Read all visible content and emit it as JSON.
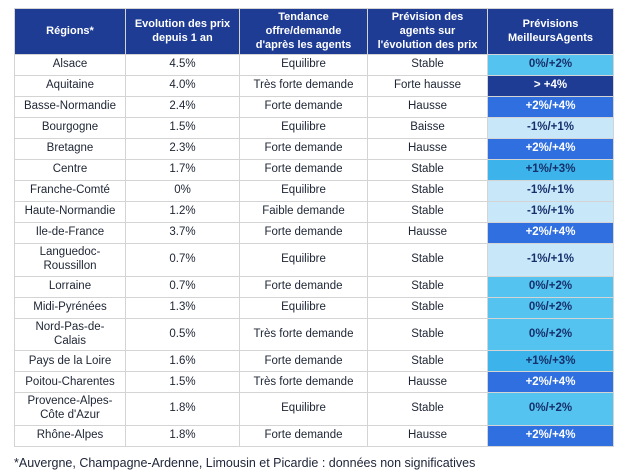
{
  "colors": {
    "header_bg": "#1e3c94",
    "header_text": "#ffffff",
    "body_text": "#1d2433",
    "grid_line": "#d4d4d4",
    "scale_l1": "#c8e8fa",
    "scale_l2": "#55c3f0",
    "scale_l3": "#3cb3ea",
    "scale_l4": "#2f6fe0",
    "scale_l5": "#1e3c94",
    "scale_dark_text": "#16306b",
    "footnote_text": "#20263a"
  },
  "chart_data": {
    "type": "table",
    "title": "",
    "columns": [
      "Régions*",
      "Evolution des prix depuis 1 an",
      "Tendance offre/demande d'après les agents",
      "Prévision des agents sur l'évolution des prix",
      "Prévisions MeilleursAgents"
    ],
    "legend_levels": {
      "l1": "-1%/+1%",
      "l2": "0%/+2%",
      "l3": "+1%/+3%",
      "l4": "+2%/+4%",
      "l5": "> +4%"
    },
    "rows": [
      {
        "region": "Alsace",
        "evolution": "4.5%",
        "tendance": "Equilibre",
        "prevision": "Stable",
        "meilleursagents": "0%/+2%",
        "level": "l2"
      },
      {
        "region": "Aquitaine",
        "evolution": "4.0%",
        "tendance": "Très forte demande",
        "prevision": "Forte hausse",
        "meilleursagents": "> +4%",
        "level": "l5"
      },
      {
        "region": "Basse-Normandie",
        "evolution": "2.4%",
        "tendance": "Forte demande",
        "prevision": "Hausse",
        "meilleursagents": "+2%/+4%",
        "level": "l4"
      },
      {
        "region": "Bourgogne",
        "evolution": "1.5%",
        "tendance": "Equilibre",
        "prevision": "Baisse",
        "meilleursagents": "-1%/+1%",
        "level": "l1"
      },
      {
        "region": "Bretagne",
        "evolution": "2.3%",
        "tendance": "Forte demande",
        "prevision": "Hausse",
        "meilleursagents": "+2%/+4%",
        "level": "l4"
      },
      {
        "region": "Centre",
        "evolution": "1.7%",
        "tendance": "Forte demande",
        "prevision": "Stable",
        "meilleursagents": "+1%/+3%",
        "level": "l3"
      },
      {
        "region": "Franche-Comté",
        "evolution": "0%",
        "tendance": "Equilibre",
        "prevision": "Stable",
        "meilleursagents": "-1%/+1%",
        "level": "l1"
      },
      {
        "region": "Haute-Normandie",
        "evolution": "1.2%",
        "tendance": "Faible demande",
        "prevision": "Stable",
        "meilleursagents": "-1%/+1%",
        "level": "l1"
      },
      {
        "region": "Ile-de-France",
        "evolution": "3.7%",
        "tendance": "Forte demande",
        "prevision": "Hausse",
        "meilleursagents": "+2%/+4%",
        "level": "l4"
      },
      {
        "region": "Languedoc-Roussillon",
        "evolution": "0.7%",
        "tendance": "Equilibre",
        "prevision": "Stable",
        "meilleursagents": "-1%/+1%",
        "level": "l1"
      },
      {
        "region": "Lorraine",
        "evolution": "0.7%",
        "tendance": "Forte demande",
        "prevision": "Stable",
        "meilleursagents": "0%/+2%",
        "level": "l2"
      },
      {
        "region": "Midi-Pyrénées",
        "evolution": "1.3%",
        "tendance": "Equilibre",
        "prevision": "Stable",
        "meilleursagents": "0%/+2%",
        "level": "l2"
      },
      {
        "region": "Nord-Pas-de-Calais",
        "evolution": "0.5%",
        "tendance": "Très forte demande",
        "prevision": "Stable",
        "meilleursagents": "0%/+2%",
        "level": "l2"
      },
      {
        "region": "Pays de la Loire",
        "evolution": "1.6%",
        "tendance": "Forte demande",
        "prevision": "Stable",
        "meilleursagents": "+1%/+3%",
        "level": "l3"
      },
      {
        "region": "Poitou-Charentes",
        "evolution": "1.5%",
        "tendance": "Très forte demande",
        "prevision": "Hausse",
        "meilleursagents": "+2%/+4%",
        "level": "l4"
      },
      {
        "region": "Provence-Alpes-Côte d'Azur",
        "evolution": "1.8%",
        "tendance": "Equilibre",
        "prevision": "Stable",
        "meilleursagents": "0%/+2%",
        "level": "l2"
      },
      {
        "region": "Rhône-Alpes",
        "evolution": "1.8%",
        "tendance": "Forte demande",
        "prevision": "Hausse",
        "meilleursagents": "+2%/+4%",
        "level": "l4"
      }
    ]
  },
  "footnote": "*Auvergne, Champagne-Ardenne, Limousin et Picardie : données non significatives"
}
